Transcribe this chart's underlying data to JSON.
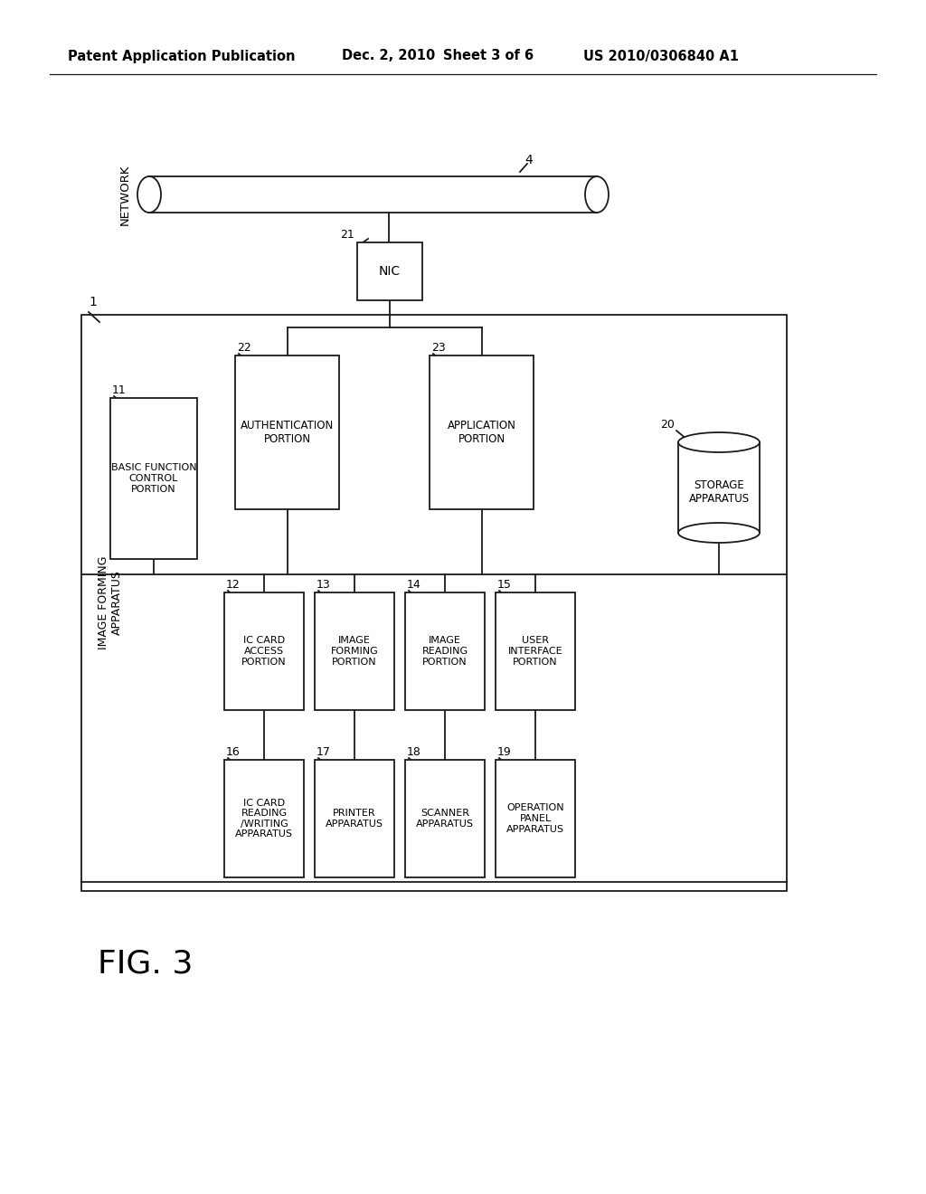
{
  "bg_color": "#ffffff",
  "line_color": "#1a1a1a",
  "header_text": "Patent Application Publication",
  "header_date": "Dec. 2, 2010",
  "header_sheet": "Sheet 3 of 6",
  "header_patent": "US 2010/0306840 A1",
  "fig_label": "FIG. 3",
  "network_label": "NETWORK",
  "network_num": "4",
  "nic_label": "NIC",
  "nic_num": "21",
  "auth_label": "AUTHENTICATION\nPORTION",
  "auth_num": "22",
  "app_label": "APPLICATION\nPORTION",
  "app_num": "23",
  "storage_label": "STORAGE\nAPPARATUS",
  "storage_num": "20",
  "outer_box_num": "1",
  "image_forming_label": "IMAGE FORMING\nAPPARATUS",
  "basic_label": "BASIC FUNCTION\nCONTROL\nPORTION",
  "basic_num": "11",
  "boxes_top": [
    {
      "label": "IC CARD\nACCESS\nPORTION",
      "num": "12"
    },
    {
      "label": "IMAGE\nFORMING\nPORTION",
      "num": "13"
    },
    {
      "label": "IMAGE\nREADING\nPORTION",
      "num": "14"
    },
    {
      "label": "USER\nINTERFACE\nPORTION",
      "num": "15"
    }
  ],
  "boxes_bottom": [
    {
      "label": "IC CARD\nREADING\n/WRITING\nAPPARATUS",
      "num": "16"
    },
    {
      "label": "PRINTER\nAPPARATUS",
      "num": "17"
    },
    {
      "label": "SCANNER\nAPPARATUS",
      "num": "18"
    },
    {
      "label": "OPERATION\nPANEL\nAPPARATUS",
      "num": "19"
    }
  ]
}
